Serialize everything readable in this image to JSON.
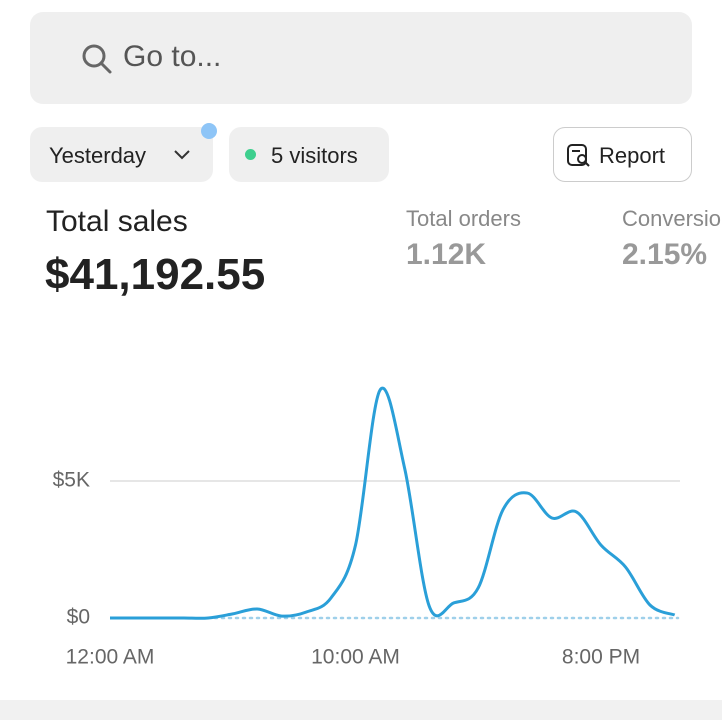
{
  "search": {
    "placeholder": "Go to..."
  },
  "filters": {
    "date": "Yesterday",
    "visitors": "5 visitors",
    "report": "Report"
  },
  "metrics": [
    {
      "label": "Total sales",
      "value": "$41,192.55"
    },
    {
      "label": "Total orders",
      "value": "1.12K"
    },
    {
      "label": "Conversion rate",
      "value": "2.15%"
    }
  ],
  "chart_data": {
    "type": "line",
    "categories": [
      "12:00 AM",
      null,
      null,
      null,
      null,
      null,
      null,
      null,
      null,
      null,
      "10:00 AM",
      null,
      null,
      null,
      null,
      null,
      null,
      null,
      null,
      null,
      "8:00 PM",
      null,
      null,
      null
    ],
    "series": [
      {
        "color": "#2a9fd8",
        "values": [
          0,
          0,
          0,
          0,
          0,
          150,
          330,
          70,
          220,
          730,
          2660,
          8320,
          5470,
          440,
          550,
          1100,
          3940,
          4560,
          3650,
          3870,
          2660,
          1860,
          470,
          110
        ]
      }
    ],
    "ylim": [
      0,
      10000
    ],
    "yticks": [
      {
        "value": 0,
        "label": "$0"
      },
      {
        "value": 5000,
        "label": "$5K"
      }
    ],
    "grid": true
  }
}
